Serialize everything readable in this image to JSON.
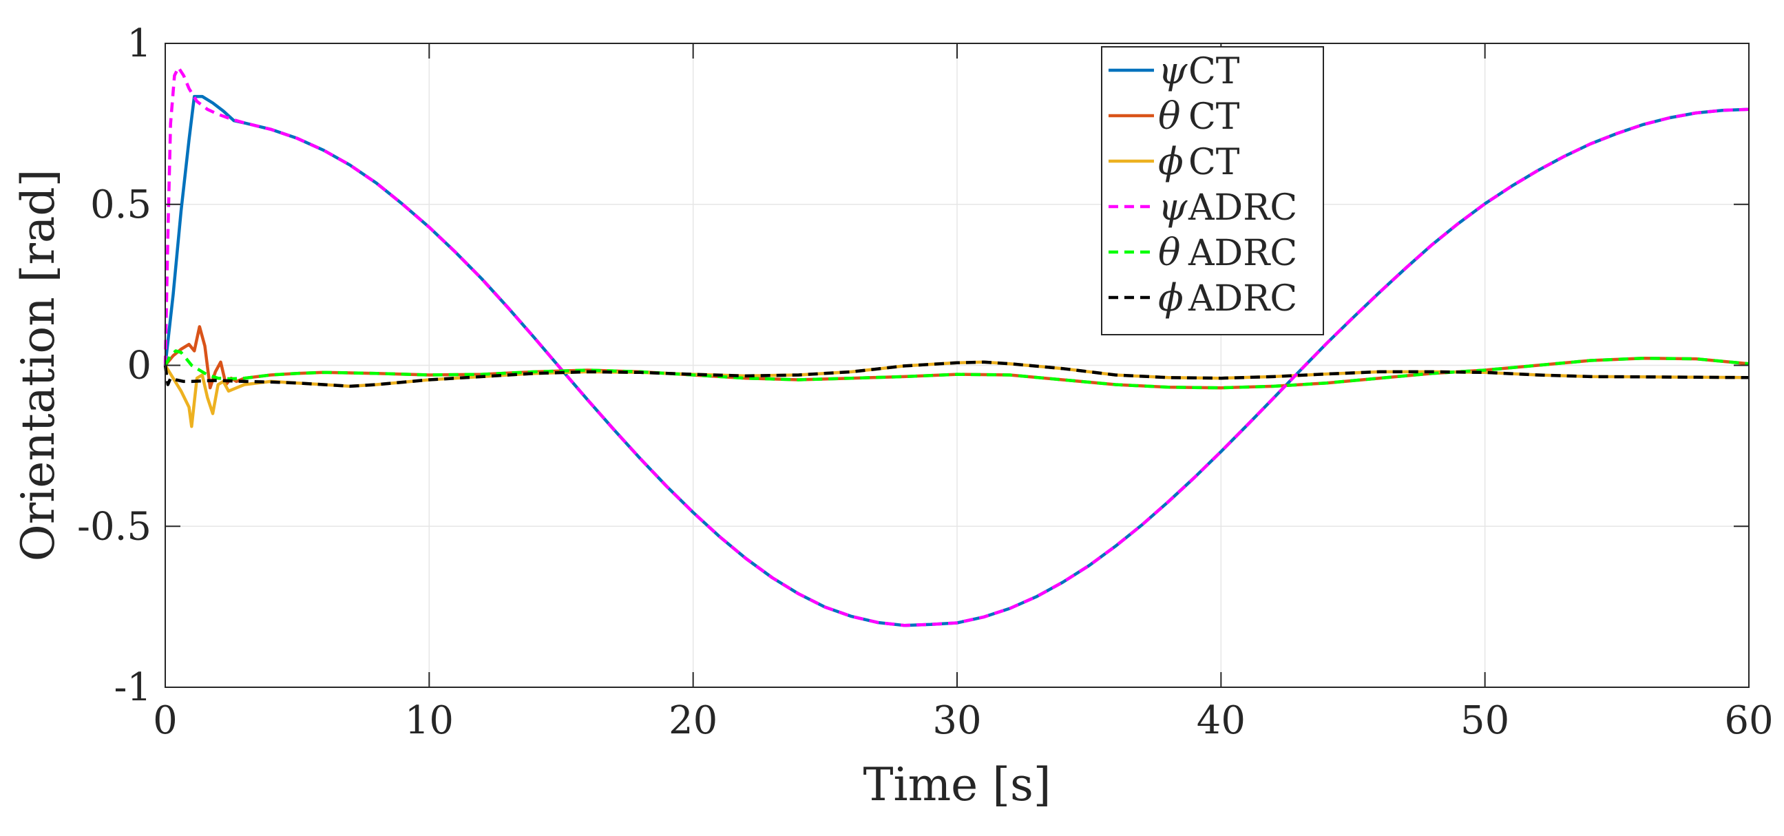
{
  "chart_data": {
    "type": "line",
    "title": "",
    "xlabel": "Time [s]",
    "ylabel": "Orientation [rad]",
    "xlim": [
      0,
      60
    ],
    "ylim": [
      -1,
      1
    ],
    "grid": true,
    "legend_position": "top-right",
    "x_ticks": [
      0,
      10,
      20,
      30,
      40,
      50,
      60
    ],
    "x_tick_labels": [
      "0",
      "10",
      "20",
      "30",
      "40",
      "50",
      "60"
    ],
    "y_ticks": [
      -1,
      -0.5,
      0,
      0.5,
      1
    ],
    "y_tick_labels": [
      "-1",
      "-0.5",
      "0",
      "0.5",
      "1"
    ],
    "series": [
      {
        "name": "ψ CT",
        "symbol": "ψ",
        "suffix": "CT",
        "color": "#0072BD",
        "dash": "solid",
        "x": [
          0,
          0.3,
          0.6,
          0.9,
          1.1,
          1.4,
          1.8,
          2.2,
          2.6,
          3,
          4,
          5,
          6,
          7,
          8,
          9,
          10,
          11,
          12,
          13,
          14,
          15,
          16,
          17,
          18,
          19,
          20,
          21,
          22,
          23,
          24,
          25,
          26,
          27,
          28,
          29,
          30,
          31,
          32,
          33,
          34,
          35,
          36,
          37,
          38,
          39,
          40,
          41,
          42,
          43,
          44,
          45,
          46,
          47,
          48,
          49,
          50,
          51,
          52,
          53,
          54,
          55,
          56,
          57,
          58,
          59,
          60
        ],
        "values": [
          0.0,
          0.22,
          0.48,
          0.7,
          0.835,
          0.835,
          0.815,
          0.79,
          0.76,
          0.753,
          0.733,
          0.705,
          0.668,
          0.622,
          0.566,
          0.5,
          0.429,
          0.351,
          0.268,
          0.178,
          0.084,
          -0.012,
          -0.107,
          -0.2,
          -0.29,
          -0.376,
          -0.457,
          -0.532,
          -0.6,
          -0.66,
          -0.71,
          -0.751,
          -0.78,
          -0.799,
          -0.808,
          -0.805,
          -0.8,
          -0.782,
          -0.755,
          -0.719,
          -0.674,
          -0.622,
          -0.562,
          -0.496,
          -0.424,
          -0.348,
          -0.268,
          -0.185,
          -0.101,
          -0.016,
          0.068,
          0.148,
          0.226,
          0.302,
          0.375,
          0.441,
          0.502,
          0.556,
          0.605,
          0.649,
          0.688,
          0.72,
          0.748,
          0.769,
          0.784,
          0.792,
          0.795
        ]
      },
      {
        "name": "θ CT",
        "symbol": "θ",
        "suffix": "CT",
        "color": "#D95319",
        "dash": "solid",
        "x": [
          0,
          0.3,
          0.6,
          0.9,
          1.1,
          1.3,
          1.5,
          1.7,
          1.9,
          2.1,
          2.3,
          2.5,
          2.7,
          3,
          4,
          5,
          6,
          8,
          10,
          12,
          14,
          16,
          18,
          20,
          22,
          24,
          26,
          28,
          30,
          32,
          34,
          36,
          38,
          40,
          42,
          44,
          46,
          48,
          50,
          52,
          54,
          56,
          58,
          60
        ],
        "values": [
          0.0,
          0.03,
          0.05,
          0.065,
          0.045,
          0.12,
          0.06,
          -0.07,
          -0.02,
          0.01,
          -0.06,
          -0.04,
          -0.05,
          -0.04,
          -0.03,
          -0.025,
          -0.022,
          -0.025,
          -0.03,
          -0.028,
          -0.02,
          -0.015,
          -0.02,
          -0.03,
          -0.04,
          -0.045,
          -0.04,
          -0.035,
          -0.028,
          -0.03,
          -0.045,
          -0.06,
          -0.068,
          -0.07,
          -0.065,
          -0.055,
          -0.04,
          -0.025,
          -0.015,
          0.0,
          0.015,
          0.022,
          0.02,
          0.005
        ]
      },
      {
        "name": "ϕ CT",
        "symbol": "ϕ",
        "suffix": "CT",
        "color": "#EDB120",
        "dash": "solid",
        "x": [
          0,
          0.3,
          0.6,
          0.9,
          1.0,
          1.2,
          1.4,
          1.6,
          1.8,
          2.0,
          2.2,
          2.4,
          2.7,
          3,
          4,
          5,
          6,
          7,
          8,
          10,
          12,
          14,
          16,
          18,
          20,
          22,
          24,
          26,
          28,
          30,
          31,
          32,
          34,
          36,
          38,
          40,
          42,
          44,
          46,
          48,
          50,
          52,
          54,
          56,
          58,
          60
        ],
        "values": [
          0.0,
          -0.04,
          -0.08,
          -0.13,
          -0.19,
          -0.04,
          -0.03,
          -0.1,
          -0.15,
          -0.06,
          -0.05,
          -0.08,
          -0.07,
          -0.06,
          -0.05,
          -0.055,
          -0.06,
          -0.065,
          -0.06,
          -0.045,
          -0.035,
          -0.025,
          -0.02,
          -0.022,
          -0.028,
          -0.033,
          -0.03,
          -0.02,
          -0.002,
          0.008,
          0.01,
          0.005,
          -0.01,
          -0.03,
          -0.038,
          -0.04,
          -0.035,
          -0.027,
          -0.02,
          -0.02,
          -0.022,
          -0.03,
          -0.035,
          -0.036,
          -0.037,
          -0.038
        ]
      },
      {
        "name": "ψ ADRC",
        "symbol": "ψ",
        "suffix": "ADRC",
        "color": "#FF00FF",
        "dash": "dashed",
        "x": [
          0,
          0.1,
          0.2,
          0.35,
          0.5,
          0.7,
          0.9,
          1.2,
          1.6,
          2.0,
          2.5,
          3,
          4,
          5,
          6,
          7,
          8,
          9,
          10,
          11,
          12,
          13,
          14,
          15,
          16,
          17,
          18,
          19,
          20,
          21,
          22,
          23,
          24,
          25,
          26,
          27,
          28,
          29,
          30,
          31,
          32,
          33,
          34,
          35,
          36,
          37,
          38,
          39,
          40,
          41,
          42,
          43,
          44,
          45,
          46,
          47,
          48,
          49,
          50,
          51,
          52,
          53,
          54,
          55,
          56,
          57,
          58,
          59,
          60
        ],
        "values": [
          0.0,
          0.4,
          0.75,
          0.9,
          0.925,
          0.9,
          0.86,
          0.82,
          0.795,
          0.78,
          0.765,
          0.753,
          0.733,
          0.705,
          0.668,
          0.622,
          0.566,
          0.5,
          0.429,
          0.351,
          0.268,
          0.178,
          0.084,
          -0.012,
          -0.107,
          -0.2,
          -0.29,
          -0.376,
          -0.457,
          -0.532,
          -0.6,
          -0.66,
          -0.71,
          -0.751,
          -0.78,
          -0.799,
          -0.808,
          -0.805,
          -0.8,
          -0.782,
          -0.755,
          -0.719,
          -0.674,
          -0.622,
          -0.562,
          -0.496,
          -0.424,
          -0.348,
          -0.268,
          -0.185,
          -0.101,
          -0.016,
          0.068,
          0.148,
          0.226,
          0.302,
          0.375,
          0.441,
          0.502,
          0.556,
          0.605,
          0.649,
          0.688,
          0.72,
          0.748,
          0.769,
          0.784,
          0.792,
          0.795
        ]
      },
      {
        "name": "θ ADRC",
        "symbol": "θ",
        "suffix": "ADRC",
        "color": "#00FF00",
        "dash": "dashed",
        "x": [
          0,
          0.2,
          0.4,
          0.6,
          0.8,
          1.0,
          1.3,
          1.6,
          2,
          2.5,
          3,
          4,
          5,
          6,
          8,
          10,
          12,
          14,
          16,
          18,
          20,
          22,
          24,
          26,
          28,
          30,
          32,
          34,
          36,
          38,
          40,
          42,
          44,
          46,
          48,
          50,
          52,
          54,
          56,
          58,
          60
        ],
        "values": [
          0.0,
          0.03,
          0.045,
          0.04,
          0.02,
          0.0,
          -0.015,
          -0.03,
          -0.04,
          -0.042,
          -0.04,
          -0.03,
          -0.025,
          -0.022,
          -0.025,
          -0.03,
          -0.028,
          -0.02,
          -0.015,
          -0.02,
          -0.03,
          -0.04,
          -0.045,
          -0.04,
          -0.035,
          -0.028,
          -0.03,
          -0.045,
          -0.06,
          -0.068,
          -0.07,
          -0.065,
          -0.055,
          -0.04,
          -0.025,
          -0.015,
          0.0,
          0.015,
          0.022,
          0.02,
          0.005
        ]
      },
      {
        "name": "ϕ ADRC",
        "symbol": "ϕ",
        "suffix": "ADRC",
        "color": "#000000",
        "dash": "dashed",
        "x": [
          0,
          0.1,
          0.2,
          0.4,
          0.7,
          1.0,
          1.5,
          2,
          3,
          4,
          5,
          6,
          7,
          8,
          10,
          12,
          14,
          16,
          18,
          20,
          22,
          24,
          26,
          28,
          30,
          31,
          32,
          34,
          36,
          38,
          40,
          42,
          44,
          46,
          48,
          50,
          52,
          54,
          56,
          58,
          60
        ],
        "values": [
          0.0,
          -0.06,
          -0.04,
          -0.045,
          -0.05,
          -0.05,
          -0.048,
          -0.047,
          -0.05,
          -0.052,
          -0.055,
          -0.06,
          -0.065,
          -0.06,
          -0.045,
          -0.035,
          -0.025,
          -0.02,
          -0.022,
          -0.028,
          -0.033,
          -0.03,
          -0.02,
          -0.002,
          0.008,
          0.01,
          0.005,
          -0.01,
          -0.03,
          -0.038,
          -0.04,
          -0.035,
          -0.027,
          -0.02,
          -0.02,
          -0.022,
          -0.03,
          -0.035,
          -0.036,
          -0.037,
          -0.038
        ]
      }
    ]
  }
}
